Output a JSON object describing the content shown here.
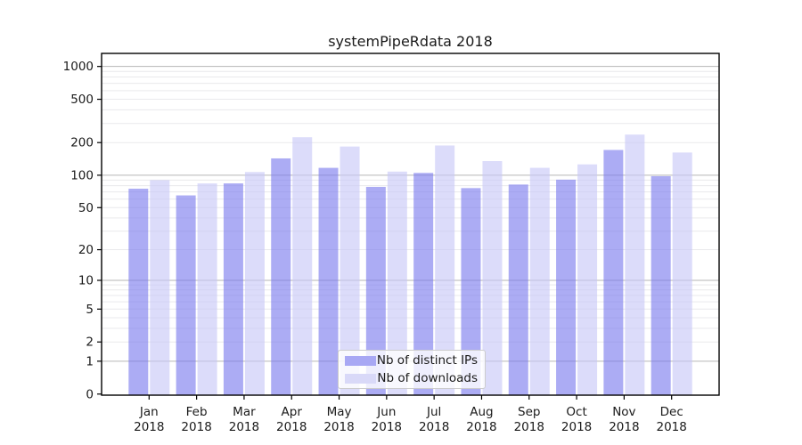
{
  "chart_data": {
    "type": "bar",
    "title": "systemPipeRdata 2018",
    "categories": [
      "Jan",
      "Feb",
      "Mar",
      "Apr",
      "May",
      "Jun",
      "Jul",
      "Aug",
      "Sep",
      "Oct",
      "Nov",
      "Dec"
    ],
    "category_year": "2018",
    "series": [
      {
        "name": "Nb of distinct IPs",
        "color": "#a8a8f4",
        "values": [
          75,
          65,
          84,
          143,
          117,
          78,
          105,
          76,
          82,
          91,
          171,
          98
        ]
      },
      {
        "name": "Nb of downloads",
        "color": "#d9d9f8",
        "values": [
          90,
          84,
          107,
          224,
          184,
          108,
          188,
          135,
          117,
          126,
          237,
          162
        ]
      }
    ],
    "xlabel": "",
    "ylabel": "",
    "yscale": "log1p",
    "ylim": [
      0,
      1000
    ],
    "y_ticks": [
      0,
      1,
      2,
      5,
      10,
      20,
      50,
      100,
      200,
      500,
      1000
    ],
    "grid": "on",
    "legend_position": "lower center",
    "colors": {
      "bar_ips_base": "#7979ee",
      "bar_downloads_base": "#c6c6f7",
      "grid_major": "#b6b6b6",
      "grid_minor": "#e9e9ec",
      "axis": "#000000",
      "text": "#1a1a1a"
    }
  }
}
